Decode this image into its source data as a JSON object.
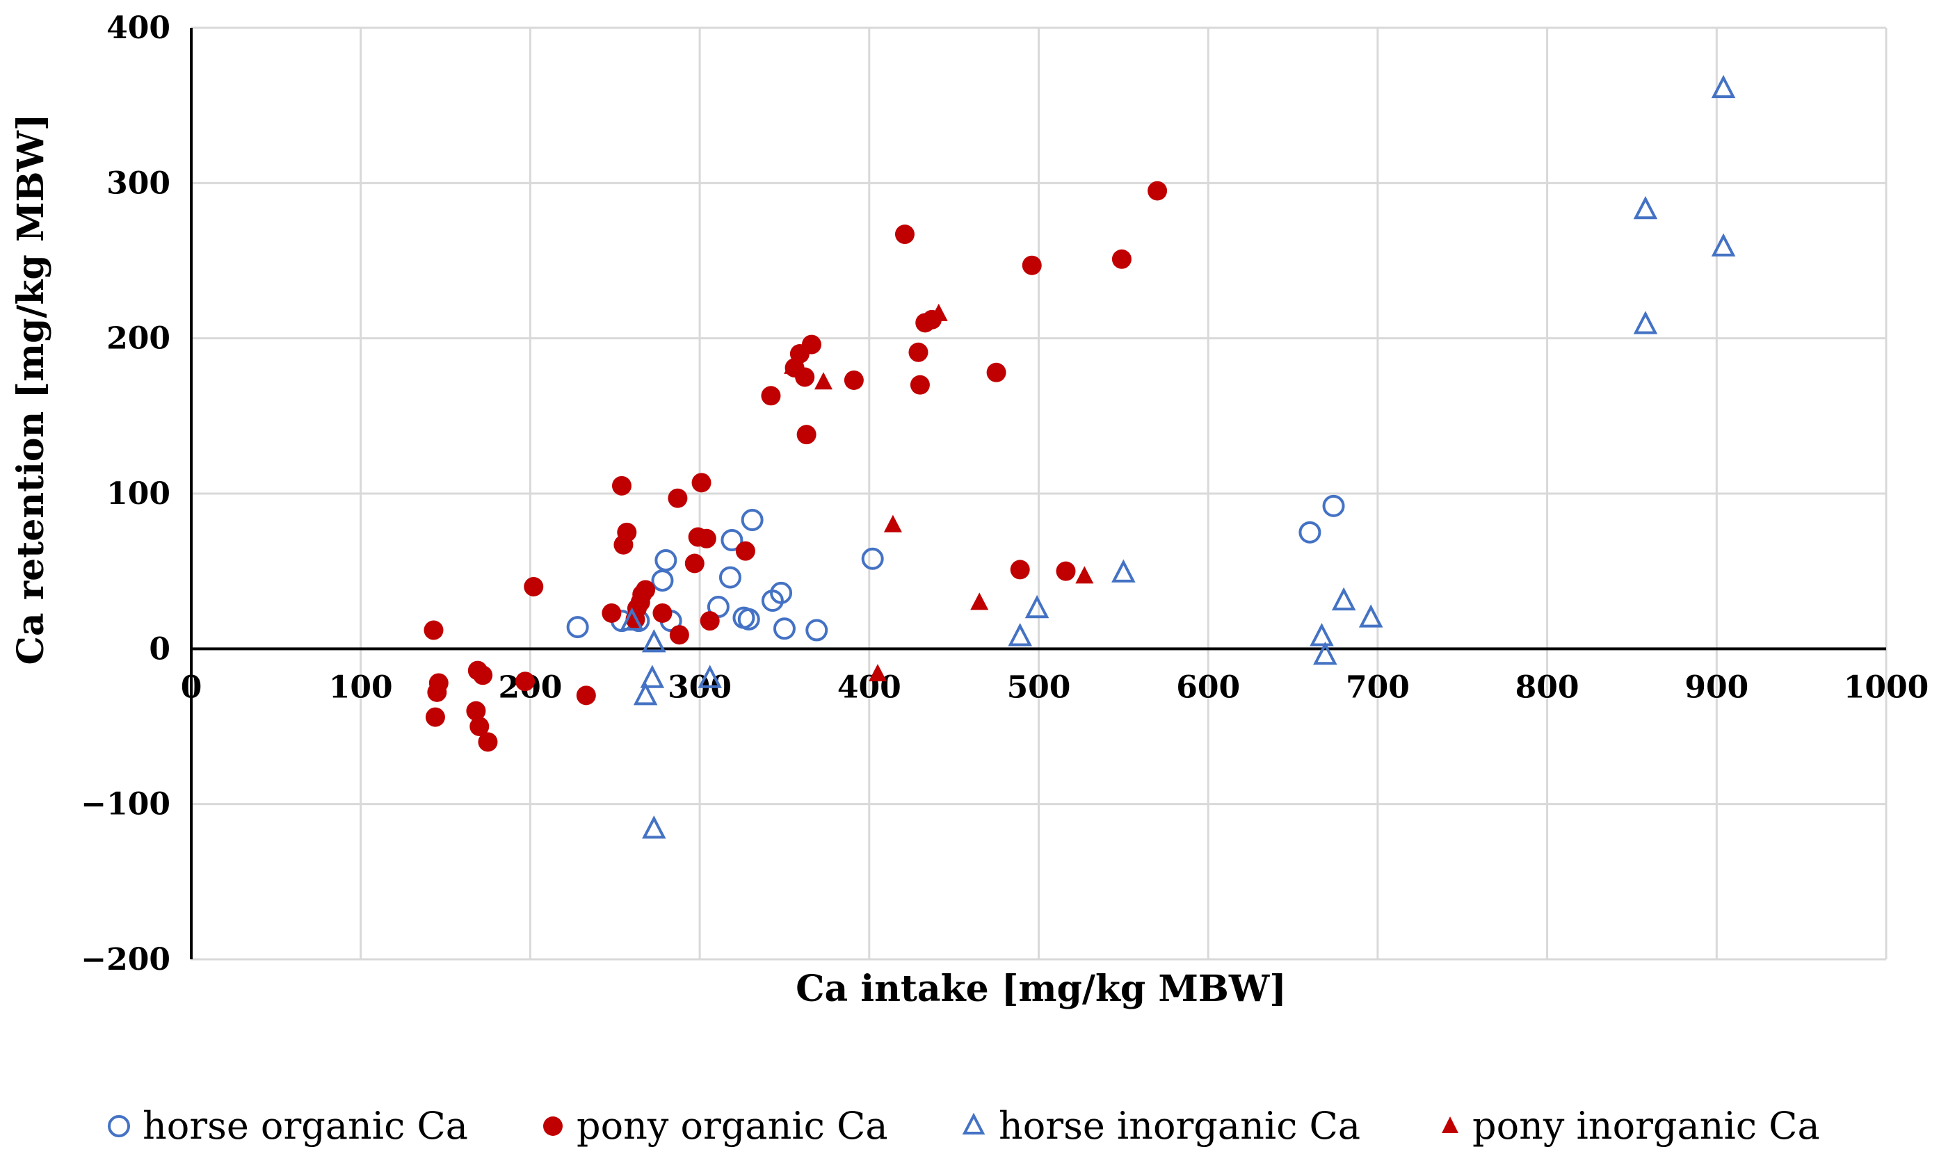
{
  "chart_data": {
    "type": "scatter",
    "title": "",
    "xlabel": "Ca intake [mg/kg MBW]",
    "ylabel": "Ca retention [mg/kg MBW]",
    "xlim": [
      0,
      1000
    ],
    "ylim": [
      -200,
      400
    ],
    "x_ticks": [
      0,
      100,
      200,
      300,
      400,
      500,
      600,
      700,
      800,
      900,
      1000
    ],
    "y_ticks": [
      -200,
      -100,
      0,
      100,
      200,
      300,
      400
    ],
    "x_tick_labels": [
      "0",
      "100",
      "200",
      "300",
      "400",
      "500",
      "600",
      "700",
      "800",
      "900",
      "1000"
    ],
    "y_tick_labels": [
      "−200",
      "−100",
      "0",
      "100",
      "200",
      "300",
      "400"
    ],
    "grid": true,
    "legend_position": "bottom",
    "series": [
      {
        "name": "horse organic Ca",
        "marker": "open-circle",
        "color": "#4472c4",
        "points": [
          [
            228,
            14
          ],
          [
            254,
            18
          ],
          [
            264,
            18
          ],
          [
            278,
            44
          ],
          [
            280,
            57
          ],
          [
            283,
            18
          ],
          [
            311,
            27
          ],
          [
            318,
            46
          ],
          [
            319,
            70
          ],
          [
            326,
            20
          ],
          [
            329,
            19
          ],
          [
            331,
            83
          ],
          [
            343,
            31
          ],
          [
            348,
            36
          ],
          [
            350,
            13
          ],
          [
            369,
            12
          ],
          [
            402,
            58
          ],
          [
            660,
            75
          ],
          [
            674,
            92
          ]
        ]
      },
      {
        "name": "pony organic Ca",
        "color": "#c00000",
        "marker": "filled-circle",
        "points": [
          [
            143,
            12
          ],
          [
            144,
            -44
          ],
          [
            145,
            -28
          ],
          [
            146,
            -22
          ],
          [
            168,
            -40
          ],
          [
            169,
            -14
          ],
          [
            170,
            -50
          ],
          [
            172,
            -17
          ],
          [
            175,
            -60
          ],
          [
            197,
            -21
          ],
          [
            202,
            40
          ],
          [
            233,
            -30
          ],
          [
            248,
            23
          ],
          [
            254,
            105
          ],
          [
            255,
            67
          ],
          [
            257,
            75
          ],
          [
            262,
            19
          ],
          [
            263,
            26
          ],
          [
            265,
            30
          ],
          [
            266,
            35
          ],
          [
            268,
            38
          ],
          [
            278,
            23
          ],
          [
            287,
            97
          ],
          [
            288,
            9
          ],
          [
            297,
            55
          ],
          [
            299,
            72
          ],
          [
            301,
            107
          ],
          [
            304,
            71
          ],
          [
            306,
            18
          ],
          [
            327,
            63
          ],
          [
            342,
            163
          ],
          [
            356,
            181
          ],
          [
            359,
            190
          ],
          [
            362,
            175
          ],
          [
            363,
            138
          ],
          [
            366,
            196
          ],
          [
            391,
            173
          ],
          [
            421,
            267
          ],
          [
            429,
            191
          ],
          [
            430,
            170
          ],
          [
            433,
            210
          ],
          [
            437,
            212
          ],
          [
            475,
            178
          ],
          [
            489,
            51
          ],
          [
            496,
            247
          ],
          [
            516,
            50
          ],
          [
            549,
            251
          ],
          [
            570,
            295
          ]
        ]
      },
      {
        "name": "horse inorganic Ca",
        "color": "#4472c4",
        "marker": "open-triangle",
        "points": [
          [
            260,
            18
          ],
          [
            268,
            -30
          ],
          [
            272,
            -19
          ],
          [
            273,
            4
          ],
          [
            273,
            -116
          ],
          [
            306,
            -19
          ],
          [
            489,
            8
          ],
          [
            499,
            26
          ],
          [
            550,
            49
          ],
          [
            667,
            8
          ],
          [
            669,
            -4
          ],
          [
            680,
            31
          ],
          [
            696,
            20
          ],
          [
            858,
            283
          ],
          [
            858,
            209
          ],
          [
            904,
            361
          ],
          [
            904,
            259
          ]
        ]
      },
      {
        "name": "pony inorganic Ca",
        "color": "#c00000",
        "marker": "filled-triangle",
        "points": [
          [
            355,
            182
          ],
          [
            373,
            172
          ],
          [
            405,
            -16
          ],
          [
            414,
            80
          ],
          [
            441,
            216
          ],
          [
            465,
            30
          ],
          [
            527,
            47
          ]
        ]
      }
    ]
  }
}
